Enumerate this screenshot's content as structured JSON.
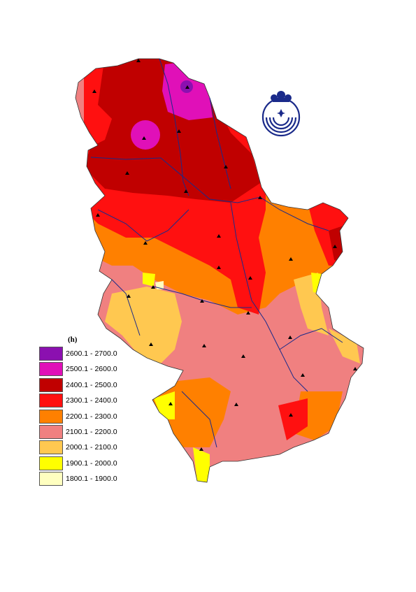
{
  "legend": {
    "unit": "(h)",
    "classes": [
      {
        "label": "2600.1 - 2700.0",
        "color": "#8B10B0"
      },
      {
        "label": "2500.1 - 2600.0",
        "color": "#E010B8"
      },
      {
        "label": "2400.1 - 2500.0",
        "color": "#C00000"
      },
      {
        "label": "2300.1 - 2400.0",
        "color": "#FF1010"
      },
      {
        "label": "2200.1 - 2300.0",
        "color": "#FF8000"
      },
      {
        "label": "2100.1 - 2200.0",
        "color": "#F08080"
      },
      {
        "label": "2000.1 - 2100.0",
        "color": "#FFC850"
      },
      {
        "label": "1900.1 - 2000.0",
        "color": "#FFFF00"
      },
      {
        "label": "1800.1 - 1900.0",
        "color": "#FFFFC0"
      }
    ]
  },
  "map": {
    "station_marker": "triangle-icon",
    "river_color": "#1a2a8a",
    "logo": "hydrometeorological-service-logo"
  }
}
